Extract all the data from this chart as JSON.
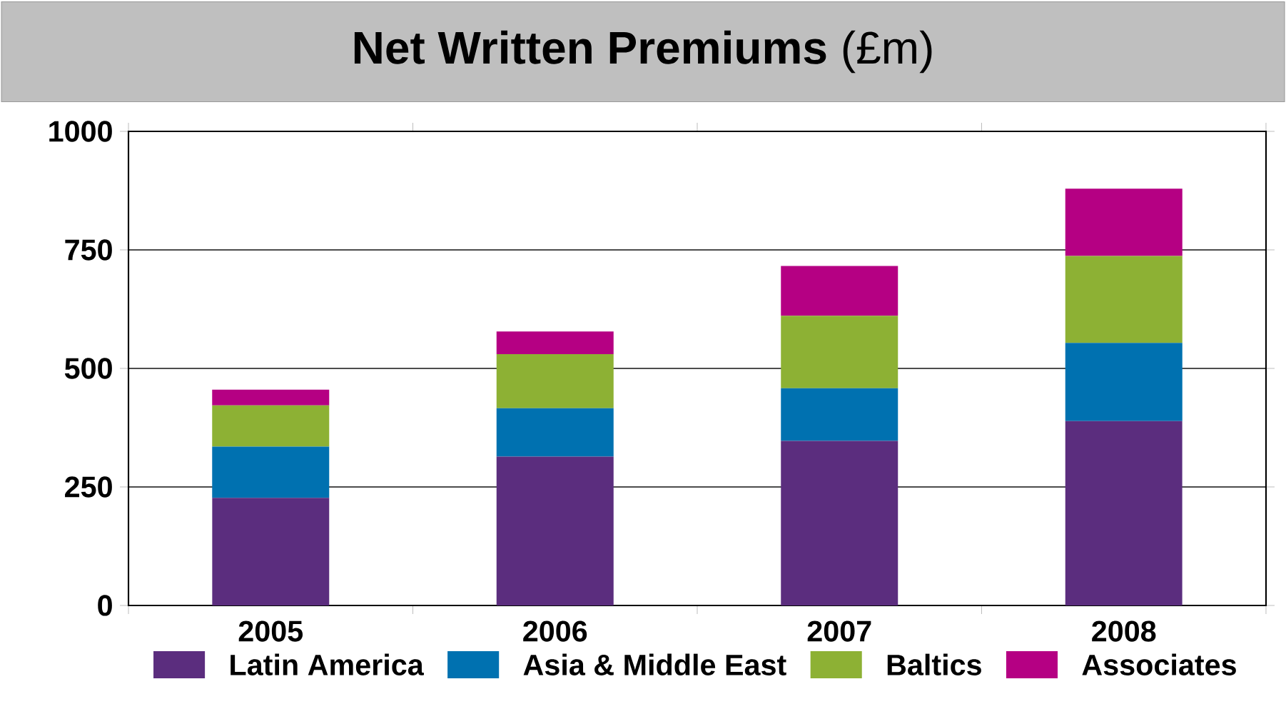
{
  "chart_data": {
    "type": "bar",
    "title": "**Net Written Premiums** (£m)",
    "categories": [
      "2005",
      "2006",
      "2007",
      "2008"
    ],
    "stacked": true,
    "series": [
      {
        "name": "Latin America",
        "color": "#5b2d7e",
        "values": [
          227,
          314,
          347,
          389
        ]
      },
      {
        "name": "Asia & Middle East",
        "color": "#0071b0",
        "values": [
          108,
          102,
          111,
          165
        ]
      },
      {
        "name": "Baltics",
        "color": "#8db134",
        "values": [
          87,
          114,
          153,
          183
        ]
      },
      {
        "name": "Associates",
        "color": "#b50083",
        "values": [
          33,
          48,
          105,
          142
        ]
      }
    ],
    "ylim": [
      0,
      1000
    ],
    "yticks": [
      0,
      250,
      500,
      750,
      1000
    ],
    "grid": "y",
    "legend": "bottom"
  }
}
